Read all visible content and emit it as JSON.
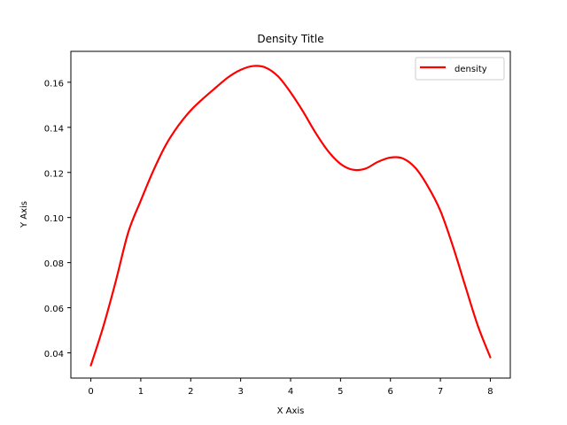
{
  "chart_data": {
    "type": "line",
    "title": "Density Title",
    "xlabel": "X Axis",
    "ylabel": "Y Axis",
    "xlim": [
      -0.4,
      8.4
    ],
    "ylim": [
      0.0288,
      0.1737
    ],
    "xticks": [
      0,
      1,
      2,
      3,
      4,
      5,
      6,
      7,
      8
    ],
    "xtick_labels": [
      "0",
      "1",
      "2",
      "3",
      "4",
      "5",
      "6",
      "7",
      "8"
    ],
    "yticks": [
      0.04,
      0.06,
      0.08,
      0.1,
      0.12,
      0.14,
      0.16
    ],
    "ytick_labels": [
      "0.04",
      "0.06",
      "0.08",
      "0.10",
      "0.12",
      "0.14",
      "0.16"
    ],
    "grid": false,
    "legend_position": "top-right",
    "series": [
      {
        "name": "density",
        "color": "#ff0000",
        "x": [
          0,
          0.25,
          0.5,
          0.75,
          1.0,
          1.25,
          1.5,
          1.75,
          2.0,
          2.25,
          2.5,
          2.75,
          3.0,
          3.25,
          3.5,
          3.75,
          4.0,
          4.25,
          4.5,
          4.75,
          5.0,
          5.25,
          5.5,
          5.75,
          6.0,
          6.25,
          6.5,
          6.75,
          7.0,
          7.25,
          7.5,
          7.75,
          8.0
        ],
        "y": [
          0.0344,
          0.0517,
          0.0718,
          0.0935,
          0.1075,
          0.1207,
          0.1321,
          0.1407,
          0.1475,
          0.1528,
          0.1576,
          0.1622,
          0.1655,
          0.1672,
          0.1665,
          0.1626,
          0.1555,
          0.147,
          0.1376,
          0.1295,
          0.1238,
          0.1212,
          0.1217,
          0.1247,
          0.1266,
          0.1262,
          0.122,
          0.1138,
          0.103,
          0.0873,
          0.0695,
          0.052,
          0.038
        ]
      }
    ]
  }
}
